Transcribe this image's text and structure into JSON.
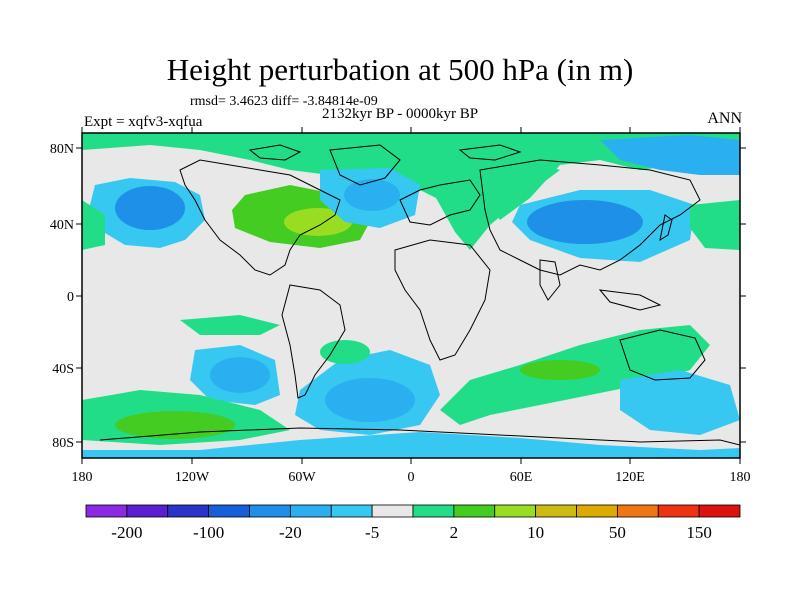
{
  "title": "Height perturbation at 500 hPa (in m)",
  "stats": "rmsd= 3.4623 diff= -3.84814e-09",
  "period": "2132kyr BP - 0000kyr BP",
  "experiment": "Expt = xqfv3-xqfua",
  "season": "ANN",
  "lat_labels": [
    "80N",
    "40N",
    "0",
    "40S",
    "80S"
  ],
  "lon_labels": [
    "180",
    "120W",
    "60W",
    "0",
    "60E",
    "120E",
    "180"
  ],
  "colorbar": {
    "colors": [
      "#8a2be2",
      "#5a1fd0",
      "#2a35c8",
      "#1560d8",
      "#1e90e8",
      "#2ab0f0",
      "#36c8f0",
      "#e8e8e8",
      "#22dd88",
      "#44cc22",
      "#99dd22",
      "#ccbb11",
      "#ddaa00",
      "#ee7711",
      "#ee3311",
      "#dd1111"
    ],
    "labels": [
      "-200",
      "-100",
      "-20",
      "-5",
      "2",
      "10",
      "50",
      "150"
    ]
  },
  "field_colors": {
    "neutral": "#e8e8e8",
    "blue_light": "#36c8f0",
    "blue_mid": "#2ab0f0",
    "blue_dark": "#1e90e8",
    "green": "#22dd88",
    "green_dark": "#44cc22",
    "yellow_green": "#99dd22"
  }
}
